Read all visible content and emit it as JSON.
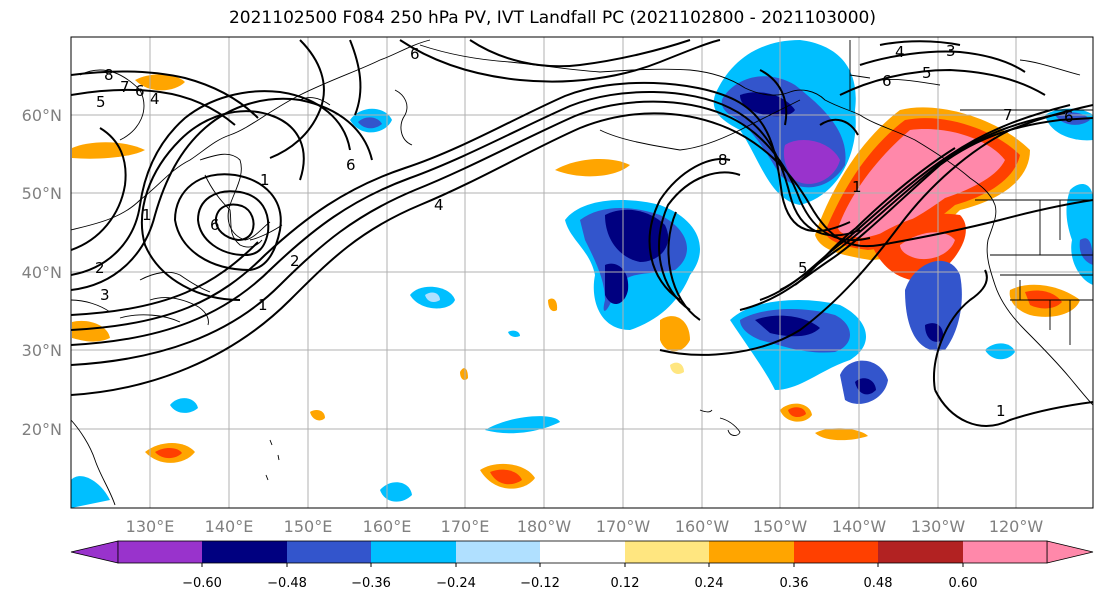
{
  "title": "2021102500 F084 250 hPa PV, IVT Landfall PC (2021102800 - 2021103000)",
  "latitude_labels": [
    "60°N",
    "50°N",
    "40°N",
    "30°N",
    "20°N"
  ],
  "longitude_labels": [
    "130°E",
    "140°E",
    "150°E",
    "160°E",
    "170°E",
    "180°W",
    "170°W",
    "160°W",
    "150°W",
    "140°W",
    "130°W",
    "120°W"
  ],
  "colorbar": {
    "ticks": [
      "−0.60",
      "−0.48",
      "−0.36",
      "−0.24",
      "−0.12",
      "0.12",
      "0.24",
      "0.36",
      "0.48",
      "0.60"
    ],
    "colors": [
      "#9933cc",
      "#000080",
      "#3355cc",
      "#00bfff",
      "#b0e0ff",
      "#ffffff",
      "#ffe680",
      "#ffa500",
      "#ff4000",
      "#b22222",
      "#ff88aa"
    ]
  },
  "pv_contour_labels": [
    "8",
    "7",
    "6",
    "5",
    "4",
    "6",
    "1",
    "2",
    "3",
    "1",
    "2",
    "1",
    "6",
    "4",
    "8",
    "5",
    "1",
    "4",
    "3",
    "5",
    "6",
    "7",
    "6",
    "1",
    "6"
  ],
  "colors": {
    "grid": "#b0b0b0",
    "coast": "#000000",
    "contour": "#000000"
  }
}
